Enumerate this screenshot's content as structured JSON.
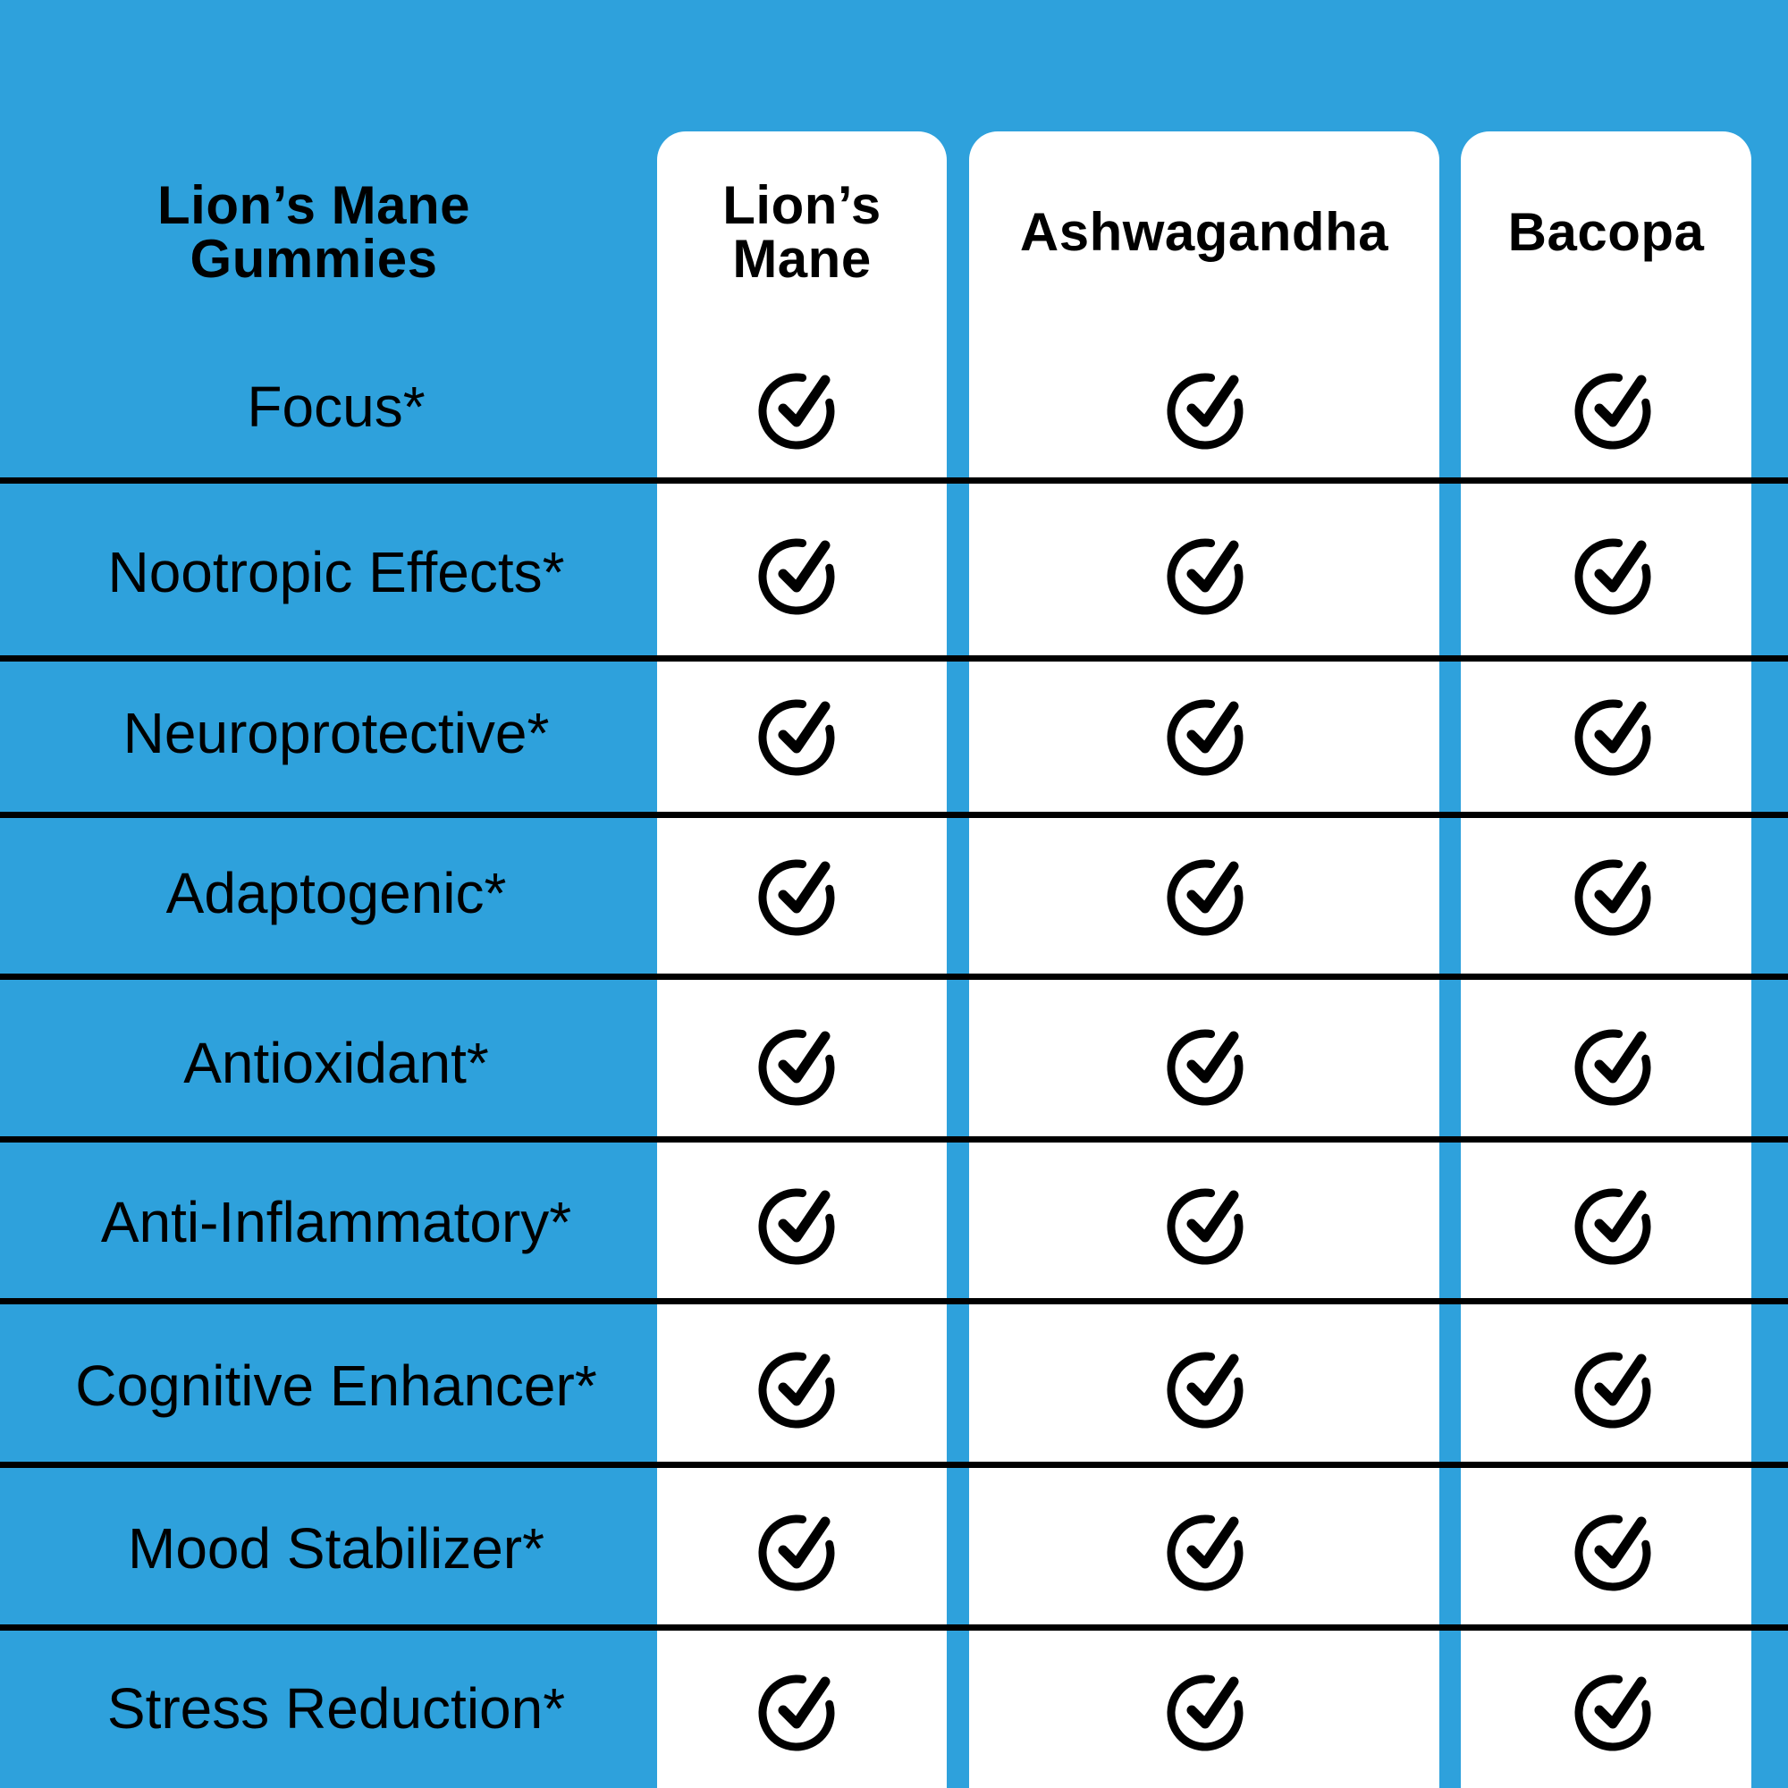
{
  "header": {
    "product": "Lion’s Mane Gummies",
    "columns": [
      "Lion’s Mane",
      "Ashwagandha",
      "Bacopa"
    ]
  },
  "rows": [
    {
      "label": "Focus*",
      "checks": [
        true,
        true,
        true
      ]
    },
    {
      "label": "Nootropic Effects*",
      "checks": [
        true,
        true,
        true
      ]
    },
    {
      "label": "Neuroprotective*",
      "checks": [
        true,
        true,
        true
      ]
    },
    {
      "label": "Adaptogenic*",
      "checks": [
        true,
        true,
        true
      ]
    },
    {
      "label": "Antioxidant*",
      "checks": [
        true,
        true,
        true
      ]
    },
    {
      "label": "Anti-Inflammatory*",
      "checks": [
        true,
        true,
        true
      ]
    },
    {
      "label": "Cognitive Enhancer*",
      "checks": [
        true,
        true,
        true
      ]
    },
    {
      "label": "Mood Stabilizer*",
      "checks": [
        true,
        true,
        true
      ]
    },
    {
      "label": "Stress Reduction*",
      "checks": [
        true,
        true,
        true
      ]
    }
  ],
  "icons": {
    "check": "check-circle-icon"
  },
  "colors": {
    "background": "#2ea1dc",
    "column": "#ffffff",
    "ink": "#000000"
  }
}
